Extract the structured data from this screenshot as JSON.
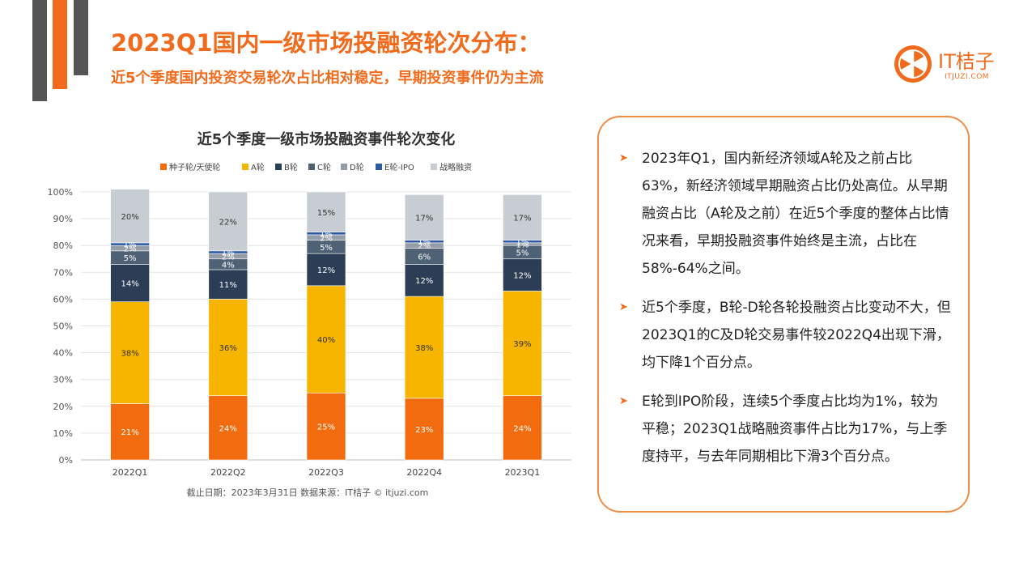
{
  "header": {
    "title": "2023Q1国内一级市场投融资轮次分布：",
    "subtitle": "近5个季度国内投资交易轮次占比相对稳定，早期投资事件仍为主流"
  },
  "logo": {
    "text": "IT桔子",
    "url": "ITJUZI.COM"
  },
  "colors": {
    "accent": "#f26b1d",
    "dark_gray": "#555555"
  },
  "chart_data": {
    "type": "bar",
    "stacked": true,
    "title": "近5个季度一级市场投融资事件轮次变化",
    "categories": [
      "2022Q1",
      "2022Q2",
      "2022Q3",
      "2022Q4",
      "2023Q1"
    ],
    "yticks": [
      "0%",
      "10%",
      "20%",
      "30%",
      "40%",
      "50%",
      "60%",
      "70%",
      "80%",
      "90%",
      "100%"
    ],
    "ylim": [
      0,
      100
    ],
    "legend": "top",
    "grid": true,
    "series": [
      {
        "name": "种子轮/天使轮",
        "color": "#f26b0f",
        "values": [
          21,
          24,
          25,
          23,
          24
        ],
        "labels": [
          "21%",
          "24%",
          "25%",
          "23%",
          "24%"
        ]
      },
      {
        "name": "A轮",
        "color": "#f7b500",
        "values": [
          38,
          36,
          40,
          38,
          39
        ],
        "labels": [
          "38%",
          "36%",
          "40%",
          "38%",
          "39%"
        ]
      },
      {
        "name": "B轮",
        "color": "#2b3e55",
        "values": [
          14,
          11,
          12,
          12,
          12
        ],
        "labels": [
          "14%",
          "11%",
          "12%",
          "12%",
          "12%"
        ]
      },
      {
        "name": "C轮",
        "color": "#4f6175",
        "values": [
          5,
          4,
          5,
          6,
          5
        ],
        "labels": [
          "5%",
          "4%",
          "5%",
          "6%",
          "5%"
        ]
      },
      {
        "name": "D轮",
        "color": "#939ca7",
        "values": [
          2,
          2,
          2,
          2,
          1
        ],
        "labels": [
          "2%",
          "2%",
          "2%",
          "2%",
          "1%"
        ]
      },
      {
        "name": "E轮-IPO",
        "color": "#2e5aa3",
        "values": [
          1,
          1,
          1,
          1,
          1
        ],
        "labels": [
          "1%",
          "1%",
          "1%",
          "1%",
          "1%"
        ]
      },
      {
        "name": "战略融资",
        "color": "#c8cdd3",
        "values": [
          20,
          22,
          15,
          17,
          17
        ],
        "labels": [
          "20%",
          "22%",
          "15%",
          "17%",
          "17%"
        ]
      }
    ],
    "note": "截止日期：2023年3月31日     数据来源：IT桔子 © itjuzi.com"
  },
  "bullets": [
    "2023年Q1，国内新经济领域A轮及之前占比63%，新经济领域早期融资占比仍处高位。从早期融资占比（A轮及之前）在近5个季度的整体占比情况来看，早期投融资事件始终是主流，占比在58%-64%之间。",
    "近5个季度，B轮-D轮各轮投融资占比变动不大，但2023Q1的C及D轮交易事件较2022Q4出现下滑，均下降1个百分点。",
    "E轮到IPO阶段，连续5个季度占比均为1%，较为平稳；2023Q1战略融资事件占比为17%，与上季度持平，与去年同期相比下滑3个百分点。"
  ]
}
